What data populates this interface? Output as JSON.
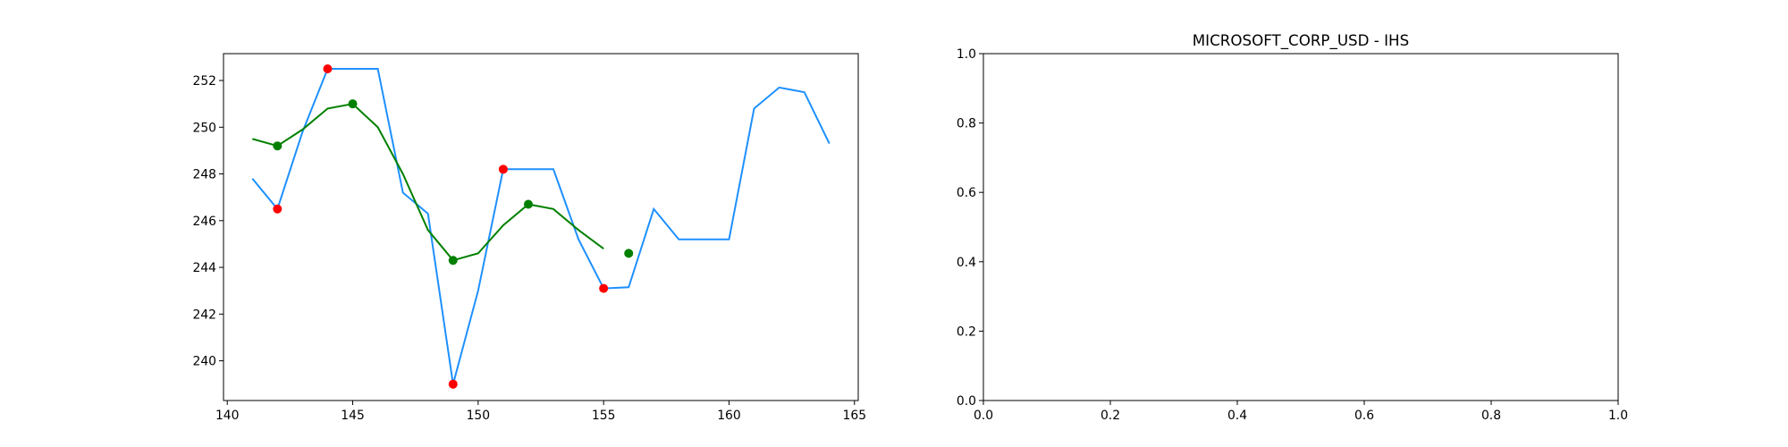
{
  "chart_data": [
    {
      "type": "line",
      "title": "",
      "xlabel": "",
      "ylabel": "",
      "xlim": [
        139.85,
        165.15
      ],
      "ylim": [
        238.3,
        253.15
      ],
      "grid": false,
      "xticks": [
        140,
        145,
        150,
        155,
        160,
        165
      ],
      "yticks": [
        240,
        242,
        244,
        246,
        248,
        250,
        252
      ],
      "series": [
        {
          "kind": "line",
          "color": "#1e90ff",
          "x": [
            141,
            142,
            143,
            144,
            145,
            146,
            147,
            148,
            149,
            150,
            151,
            152,
            153,
            154,
            155,
            156,
            157,
            158,
            159,
            160,
            161,
            162,
            163,
            164
          ],
          "y": [
            247.8,
            246.5,
            249.8,
            252.5,
            252.5,
            252.5,
            247.2,
            246.3,
            239.0,
            243.0,
            248.2,
            248.2,
            248.2,
            245.2,
            243.1,
            243.15,
            246.5,
            245.2,
            245.2,
            245.2,
            250.8,
            251.7,
            251.5,
            249.3
          ]
        },
        {
          "kind": "line",
          "color": "#008000",
          "x": [
            141,
            142,
            143,
            144,
            145,
            146,
            147,
            148,
            149,
            150,
            151,
            152,
            153,
            154,
            155
          ],
          "y": [
            249.5,
            249.2,
            249.9,
            250.8,
            251.0,
            250.0,
            248.0,
            245.6,
            244.3,
            244.6,
            245.8,
            246.7,
            246.5,
            245.6,
            244.8
          ]
        },
        {
          "kind": "scatter",
          "color": "#ff0000",
          "x": [
            142,
            144,
            149,
            151,
            155
          ],
          "y": [
            246.5,
            252.5,
            239.0,
            248.2,
            243.1
          ]
        },
        {
          "kind": "scatter",
          "color": "#008000",
          "x": [
            142,
            145,
            149,
            152,
            156
          ],
          "y": [
            249.2,
            251.0,
            244.3,
            246.7,
            244.6
          ]
        }
      ]
    },
    {
      "type": "line",
      "title": "MICROSOFT_CORP_USD - IHS",
      "xlabel": "",
      "ylabel": "",
      "xlim": [
        0,
        1
      ],
      "ylim": [
        0,
        1
      ],
      "grid": false,
      "xticks": [
        0.0,
        0.2,
        0.4,
        0.6,
        0.8,
        1.0
      ],
      "yticks": [
        0.0,
        0.2,
        0.4,
        0.6,
        0.8,
        1.0
      ],
      "series": []
    }
  ]
}
